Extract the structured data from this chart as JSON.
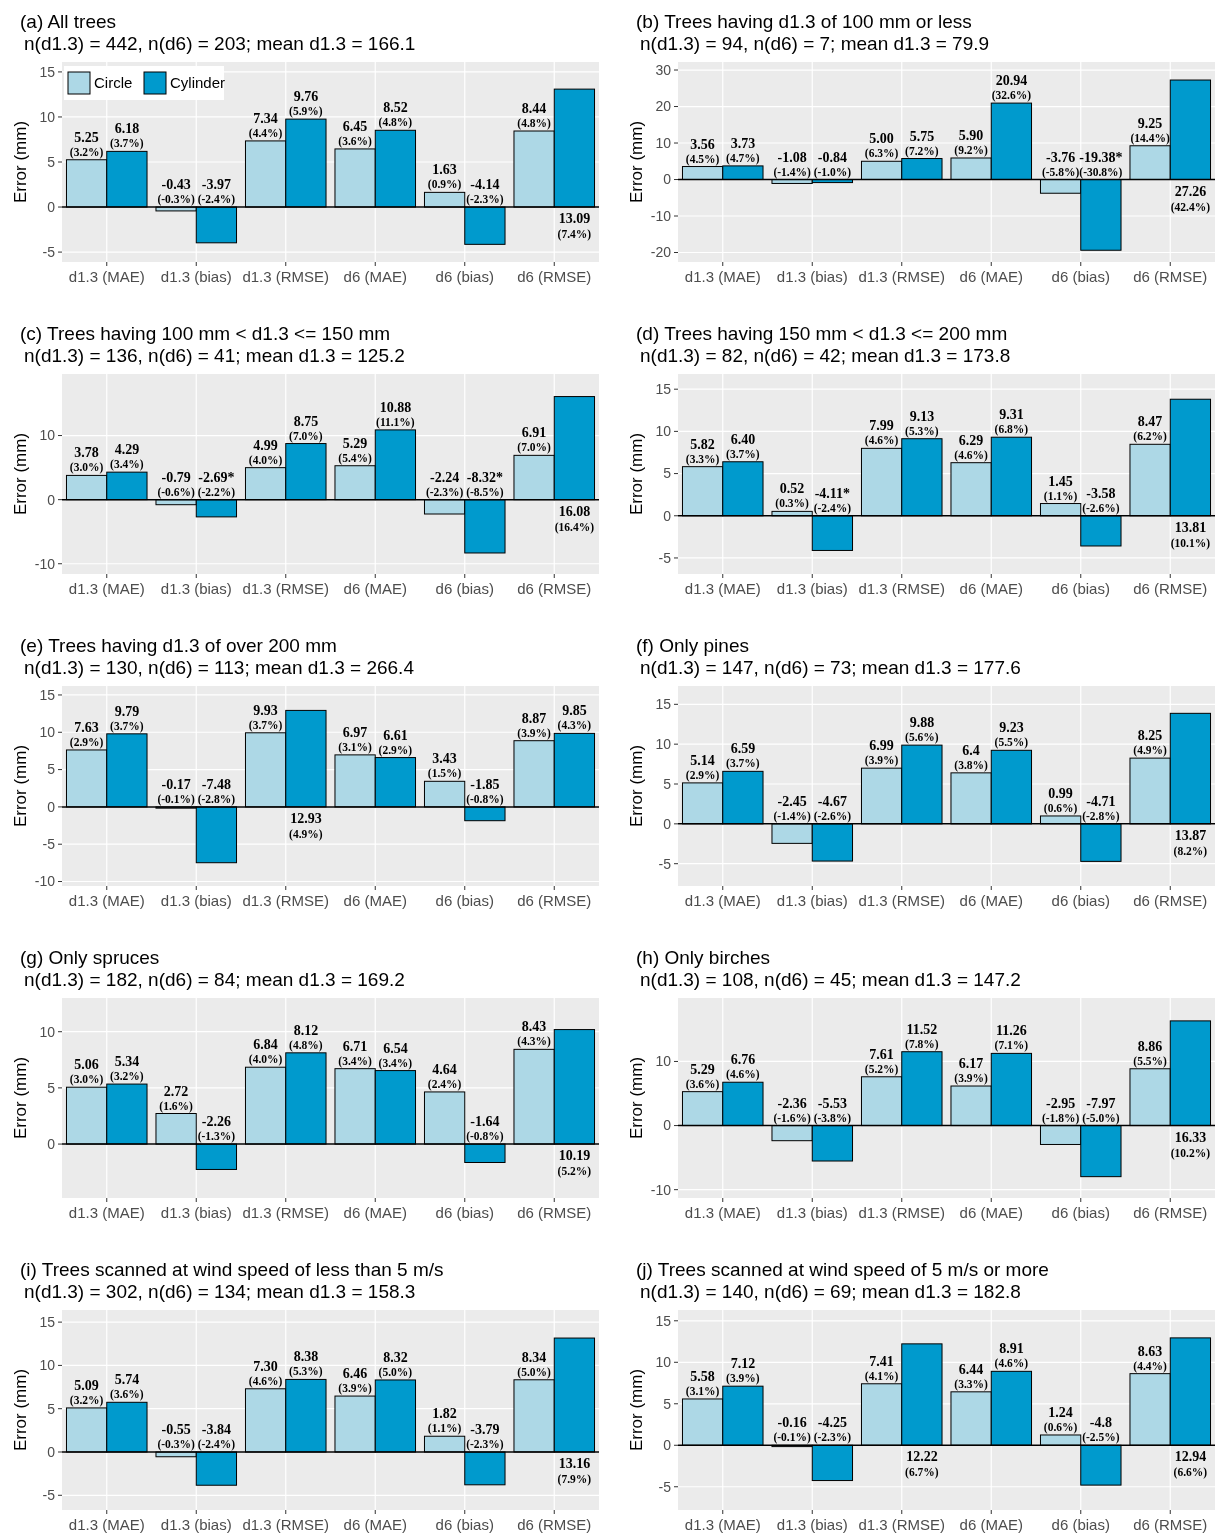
{
  "chart_data": [
    {
      "type": "bar",
      "title": "(a) All trees",
      "subtitle": "n(d1.3) = 442, n(d6) = 203; mean d1.3 = 166.1",
      "ylabel": "Error (mm)",
      "categories": [
        "d1.3 (MAE)",
        "d1.3 (bias)",
        "d1.3 (RMSE)",
        "d6 (MAE)",
        "d6 (bias)",
        "d6 (RMSE)"
      ],
      "ylim": [
        -6.1,
        16.1
      ],
      "yticks": [
        -5,
        0,
        5,
        10,
        15
      ],
      "grid": true,
      "legend": "top left",
      "ref_lines": [
        {
          "axis": "y",
          "value": 0,
          "color": "#000000"
        }
      ],
      "series": [
        {
          "name": "Circle",
          "color": "#add8e6",
          "values": [
            5.25,
            -0.43,
            7.34,
            6.45,
            1.63,
            8.44
          ],
          "value_labels": [
            "5.25 (3.2%)",
            "-0.43 (-0.3%)",
            "7.34 (4.4%)",
            "6.45 (3.6%)",
            "1.63 (0.9%)",
            "8.44 (4.8%)"
          ]
        },
        {
          "name": "Cylinder",
          "color": "#009acd",
          "values": [
            6.18,
            -3.97,
            9.76,
            8.52,
            -4.14,
            13.09
          ],
          "value_labels": [
            "6.18 (3.7%)",
            "-3.97 (-2.4%)",
            "9.76 (5.9%)",
            "8.52 (4.8%)",
            "-4.14 (-2.3%)",
            "13.09 (7.4%)"
          ]
        }
      ]
    },
    {
      "type": "bar",
      "title": "(b) Trees having d1.3 of 100 mm or less",
      "subtitle": "n(d1.3) = 94, n(d6) = 7; mean d1.3 = 79.9",
      "ylabel": "Error (mm)",
      "categories": [
        "d1.3 (MAE)",
        "d1.3 (bias)",
        "d1.3 (RMSE)",
        "d6 (MAE)",
        "d6 (bias)",
        "d6 (RMSE)"
      ],
      "ylim": [
        -22.6,
        32.2
      ],
      "yticks": [
        -20,
        -10,
        0,
        10,
        20,
        30
      ],
      "grid": true,
      "ref_lines": [
        {
          "axis": "y",
          "value": 0,
          "color": "#000000"
        }
      ],
      "series": [
        {
          "color": "#add8e6",
          "values": [
            3.56,
            -1.08,
            5.0,
            5.9,
            -3.76,
            9.25
          ],
          "value_labels": [
            "3.56 (4.5%)",
            "-1.08 (-1.4%)",
            "5.00 (6.3%)",
            "5.90 (9.2%)",
            "-3.76 (-5.8%)",
            "9.25 (14.4%)"
          ]
        },
        {
          "color": "#009acd",
          "values": [
            3.73,
            -0.84,
            5.75,
            20.94,
            -19.38,
            27.26
          ],
          "value_labels": [
            "3.73 (4.7%)",
            "-0.84 (-1.0%)",
            "5.75 (7.2%)",
            "20.94 (32.6%)",
            "-19.38* (-30.8%)",
            "27.26 (42.4%)"
          ]
        }
      ]
    },
    {
      "type": "bar",
      "title": "(c) Trees having 100 mm < d1.3 <= 150 mm",
      "subtitle": "n(d1.3) = 136, n(d6) = 41; mean d1.3 = 125.2",
      "ylabel": "Error (mm)",
      "categories": [
        "d1.3 (MAE)",
        "d1.3 (bias)",
        "d1.3 (RMSE)",
        "d6 (MAE)",
        "d6 (bias)",
        "d6 (RMSE)"
      ],
      "ylim": [
        -11.6,
        19.6
      ],
      "yticks": [
        -10,
        0,
        10
      ],
      "grid": true,
      "ref_lines": [
        {
          "axis": "y",
          "value": 0,
          "color": "#000000"
        }
      ],
      "series": [
        {
          "color": "#add8e6",
          "values": [
            3.78,
            -0.79,
            4.99,
            5.29,
            -2.24,
            6.91
          ],
          "value_labels": [
            "3.78 (3.0%)",
            "-0.79 (-0.6%)",
            "4.99 (4.0%)",
            "5.29 (5.4%)",
            "-2.24 (-2.3%)",
            "6.91 (7.0%)"
          ]
        },
        {
          "color": "#009acd",
          "values": [
            4.29,
            -2.69,
            8.75,
            10.88,
            -8.32,
            16.08
          ],
          "value_labels": [
            "4.29 (3.4%)",
            "-2.69* (-2.2%)",
            "8.75 (7.0%)",
            "10.88 (11.1%)",
            "-8.32* (-8.5%)",
            "16.08 (16.4%)"
          ]
        }
      ]
    },
    {
      "type": "bar",
      "title": "(d) Trees having 150 mm < d1.3 <= 200 mm",
      "subtitle": "n(d1.3) = 82, n(d6) = 42; mean d1.3 = 173.8",
      "ylabel": "Error (mm)",
      "categories": [
        "d1.3 (MAE)",
        "d1.3 (bias)",
        "d1.3 (RMSE)",
        "d6 (MAE)",
        "d6 (bias)",
        "d6 (RMSE)"
      ],
      "ylim": [
        -6.9,
        16.8
      ],
      "yticks": [
        -5,
        0,
        5,
        10,
        15
      ],
      "grid": true,
      "ref_lines": [
        {
          "axis": "y",
          "value": 0,
          "color": "#000000"
        }
      ],
      "series": [
        {
          "color": "#add8e6",
          "values": [
            5.82,
            0.52,
            7.99,
            6.29,
            1.45,
            8.47
          ],
          "value_labels": [
            "5.82 (3.3%)",
            "0.52 (0.3%)",
            "7.99 (4.6%)",
            "6.29 (4.6%)",
            "1.45 (1.1%)",
            "8.47 (6.2%)"
          ]
        },
        {
          "color": "#009acd",
          "values": [
            6.4,
            -4.11,
            9.13,
            9.31,
            -3.58,
            13.81
          ],
          "value_labels": [
            "6.40 (3.7%)",
            "-4.11* (-2.4%)",
            "9.13 (5.3%)",
            "9.31 (6.8%)",
            "-3.58 (-2.6%)",
            "13.81 (10.1%)"
          ]
        }
      ]
    },
    {
      "type": "bar",
      "title": "(e) Trees having d1.3 of over 200 mm",
      "subtitle": "n(d1.3) = 130, n(d6) = 113; mean d1.3 = 266.4",
      "ylabel": "Error (mm)",
      "categories": [
        "d1.3 (MAE)",
        "d1.3 (bias)",
        "d1.3 (RMSE)",
        "d6 (MAE)",
        "d6 (bias)",
        "d6 (RMSE)"
      ],
      "ylim": [
        -10.6,
        16.2
      ],
      "yticks": [
        -10,
        -5,
        0,
        5,
        10,
        15
      ],
      "grid": true,
      "ref_lines": [
        {
          "axis": "y",
          "value": 0,
          "color": "#000000"
        }
      ],
      "series": [
        {
          "color": "#add8e6",
          "values": [
            7.63,
            -0.17,
            9.93,
            6.97,
            3.43,
            8.87
          ],
          "value_labels": [
            "7.63 (2.9%)",
            "-0.17 (-0.1%)",
            "9.93 (3.7%)",
            "6.97 (3.1%)",
            "3.43 (1.5%)",
            "8.87 (3.9%)"
          ]
        },
        {
          "color": "#009acd",
          "values": [
            9.79,
            -7.48,
            12.93,
            6.61,
            -1.85,
            9.85
          ],
          "value_labels": [
            "9.79 (3.7%)",
            "-7.48 (-2.8%)",
            "12.93 (4.9%)",
            "6.61 (2.9%)",
            "-1.85 (-0.8%)",
            "9.85 (4.3%)"
          ]
        }
      ]
    },
    {
      "type": "bar",
      "title": "(f) Only pines",
      "subtitle": "n(d1.3) = 147, n(d6) = 73; mean d1.3 = 177.6",
      "ylabel": "Error (mm)",
      "categories": [
        "d1.3 (MAE)",
        "d1.3 (bias)",
        "d1.3 (RMSE)",
        "d6 (MAE)",
        "d6 (bias)",
        "d6 (RMSE)"
      ],
      "ylim": [
        -7.8,
        17.3
      ],
      "yticks": [
        -5,
        0,
        5,
        10,
        15
      ],
      "grid": true,
      "ref_lines": [
        {
          "axis": "y",
          "value": 0,
          "color": "#000000"
        }
      ],
      "series": [
        {
          "color": "#add8e6",
          "values": [
            5.14,
            -2.45,
            6.99,
            6.4,
            0.99,
            8.25
          ],
          "value_labels": [
            "5.14 (2.9%)",
            "-2.45 (-1.4%)",
            "6.99 (3.9%)",
            "6.4 (3.8%)",
            "0.99 (0.6%)",
            "8.25 (4.9%)"
          ]
        },
        {
          "color": "#009acd",
          "values": [
            6.59,
            -4.67,
            9.88,
            9.23,
            -4.71,
            13.87
          ],
          "value_labels": [
            "6.59 (3.7%)",
            "-4.67 (-2.6%)",
            "9.88 (5.6%)",
            "9.23 (5.5%)",
            "-4.71 (-2.8%)",
            "13.87 (8.2%)"
          ]
        }
      ]
    },
    {
      "type": "bar",
      "title": "(g) Only spruces",
      "subtitle": "n(d1.3) = 182, n(d6) = 84; mean d1.3 = 169.2",
      "ylabel": "Error (mm)",
      "categories": [
        "d1.3 (MAE)",
        "d1.3 (bias)",
        "d1.3 (RMSE)",
        "d6 (MAE)",
        "d6 (bias)",
        "d6 (RMSE)"
      ],
      "ylim": [
        -4.8,
        13.0
      ],
      "yticks": [
        0,
        5,
        10
      ],
      "grid": true,
      "ref_lines": [
        {
          "axis": "y",
          "value": 0,
          "color": "#000000"
        }
      ],
      "series": [
        {
          "color": "#add8e6",
          "values": [
            5.06,
            2.72,
            6.84,
            6.71,
            4.64,
            8.43
          ],
          "value_labels": [
            "5.06 (3.0%)",
            "2.72 (1.6%)",
            "6.84 (4.0%)",
            "6.71 (3.4%)",
            "4.64 (2.4%)",
            "8.43 (4.3%)"
          ]
        },
        {
          "color": "#009acd",
          "values": [
            5.34,
            -2.26,
            8.12,
            6.54,
            -1.64,
            10.19
          ],
          "value_labels": [
            "5.34 (3.2%)",
            "-2.26 (-1.3%)",
            "8.12 (4.8%)",
            "6.54 (3.4%)",
            "-1.64 (-0.8%)",
            "10.19 (5.2%)"
          ]
        }
      ]
    },
    {
      "type": "bar",
      "title": "(h) Only birches",
      "subtitle": "n(d1.3) = 108, n(d6) = 45; mean d1.3 = 147.2",
      "ylabel": "Error (mm)",
      "categories": [
        "d1.3 (MAE)",
        "d1.3 (bias)",
        "d1.3 (RMSE)",
        "d6 (MAE)",
        "d6 (bias)",
        "d6 (RMSE)"
      ],
      "ylim": [
        -11.3,
        19.9
      ],
      "yticks": [
        -10,
        0,
        10
      ],
      "grid": true,
      "ref_lines": [
        {
          "axis": "y",
          "value": 0,
          "color": "#000000"
        }
      ],
      "series": [
        {
          "color": "#add8e6",
          "values": [
            5.29,
            -2.36,
            7.61,
            6.17,
            -2.95,
            8.86
          ],
          "value_labels": [
            "5.29 (3.6%)",
            "-2.36 (-1.6%)",
            "7.61 (5.2%)",
            "6.17 (3.9%)",
            "-2.95 (-1.8%)",
            "8.86 (5.5%)"
          ]
        },
        {
          "color": "#009acd",
          "values": [
            6.76,
            -5.53,
            11.52,
            11.26,
            -7.97,
            16.33
          ],
          "value_labels": [
            "6.76 (4.6%)",
            "-5.53 (-3.8%)",
            "11.52 (7.8%)",
            "11.26 (7.1%)",
            "-7.97 (-5.0%)",
            "16.33 (10.2%)"
          ]
        }
      ]
    },
    {
      "type": "bar",
      "title": "(i) Trees scanned at wind speed of less than 5 m/s",
      "subtitle": "n(d1.3) = 302, n(d6) = 134; mean d1.3 = 158.3",
      "ylabel": "Error (mm)",
      "categories": [
        "d1.3 (MAE)",
        "d1.3 (bias)",
        "d1.3 (RMSE)",
        "d6 (MAE)",
        "d6 (bias)",
        "d6 (RMSE)"
      ],
      "ylim": [
        -6.7,
        16.4
      ],
      "yticks": [
        -5,
        0,
        5,
        10,
        15
      ],
      "grid": true,
      "ref_lines": [
        {
          "axis": "y",
          "value": 0,
          "color": "#000000"
        }
      ],
      "series": [
        {
          "color": "#add8e6",
          "values": [
            5.09,
            -0.55,
            7.3,
            6.46,
            1.82,
            8.34
          ],
          "value_labels": [
            "5.09 (3.2%)",
            "-0.55 (-0.3%)",
            "7.30 (4.6%)",
            "6.46 (3.9%)",
            "1.82 (1.1%)",
            "8.34 (5.0%)"
          ]
        },
        {
          "color": "#009acd",
          "values": [
            5.74,
            -3.84,
            8.38,
            8.32,
            -3.79,
            13.16
          ],
          "value_labels": [
            "5.74 (3.6%)",
            "-3.84 (-2.4%)",
            "8.38 (5.3%)",
            "8.32 (5.0%)",
            "-3.79 (-2.3%)",
            "13.16 (7.9%)"
          ]
        }
      ]
    },
    {
      "type": "bar",
      "title": "(j) Trees scanned at wind speed of 5 m/s or more",
      "subtitle": "n(d1.3) = 140, n(d6) = 69; mean d1.3 = 182.8",
      "ylabel": "Error (mm)",
      "categories": [
        "d1.3 (MAE)",
        "d1.3 (bias)",
        "d1.3 (RMSE)",
        "d6 (MAE)",
        "d6 (bias)",
        "d6 (RMSE)"
      ],
      "ylim": [
        -7.8,
        16.3
      ],
      "yticks": [
        -5,
        0,
        5,
        10,
        15
      ],
      "grid": true,
      "ref_lines": [
        {
          "axis": "y",
          "value": 0,
          "color": "#000000"
        }
      ],
      "series": [
        {
          "color": "#add8e6",
          "values": [
            5.58,
            -0.16,
            7.41,
            6.44,
            1.24,
            8.63
          ],
          "value_labels": [
            "5.58 (3.1%)",
            "-0.16 (-0.1%)",
            "7.41 (4.1%)",
            "6.44 (3.3%)",
            "1.24 (0.6%)",
            "8.63 (4.4%)"
          ]
        },
        {
          "color": "#009acd",
          "values": [
            7.12,
            -4.25,
            12.22,
            8.91,
            -4.8,
            12.94
          ],
          "value_labels": [
            "7.12 (3.9%)",
            "-4.25 (-2.3%)",
            "12.22 (6.7%)",
            "8.91 (4.6%)",
            "-4.8 (-2.5%)",
            "12.94 (6.6%)"
          ]
        }
      ]
    }
  ]
}
